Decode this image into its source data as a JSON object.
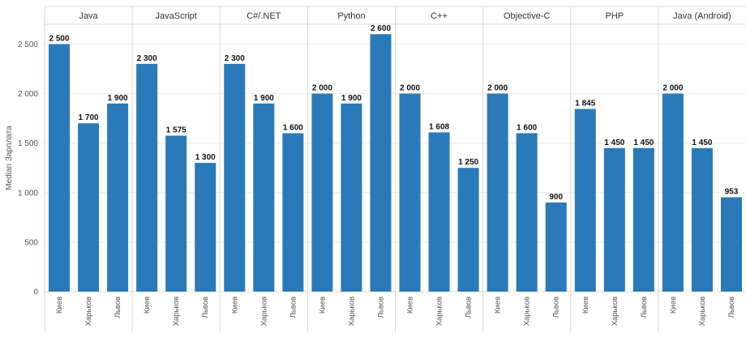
{
  "chart_data": {
    "type": "bar",
    "ylabel": "Median Зарплата",
    "ylim": [
      0,
      2700
    ],
    "yticks": [
      0,
      500,
      1000,
      1500,
      2000,
      2500
    ],
    "ytick_labels": [
      "0",
      "500",
      "1 000",
      "1 500",
      "2 000",
      "2 500"
    ],
    "categories": [
      "Киев",
      "Харьков",
      "Львов"
    ],
    "bar_color": "#2a7ab9",
    "grid": "horizontal",
    "groups": [
      {
        "name": "Java",
        "values": [
          2500,
          1700,
          1900
        ],
        "labels": [
          "2 500",
          "1 700",
          "1 900"
        ]
      },
      {
        "name": "JavaScript",
        "values": [
          2300,
          1575,
          1300
        ],
        "labels": [
          "2 300",
          "1 575",
          "1 300"
        ]
      },
      {
        "name": "C#/.NET",
        "values": [
          2300,
          1900,
          1600
        ],
        "labels": [
          "2 300",
          "1 900",
          "1 600"
        ]
      },
      {
        "name": "Python",
        "values": [
          2000,
          1900,
          2600
        ],
        "labels": [
          "2 000",
          "1 900",
          "2 600"
        ]
      },
      {
        "name": "C++",
        "values": [
          2000,
          1608,
          1250
        ],
        "labels": [
          "2 000",
          "1 608",
          "1 250"
        ]
      },
      {
        "name": "Objective-C",
        "values": [
          2000,
          1600,
          900
        ],
        "labels": [
          "2 000",
          "1 600",
          "900"
        ]
      },
      {
        "name": "PHP",
        "values": [
          1845,
          1450,
          1450
        ],
        "labels": [
          "1 845",
          "1 450",
          "1 450"
        ]
      },
      {
        "name": "Java (Android)",
        "values": [
          2000,
          1450,
          953
        ],
        "labels": [
          "2 000",
          "1 450",
          "953"
        ]
      }
    ]
  }
}
